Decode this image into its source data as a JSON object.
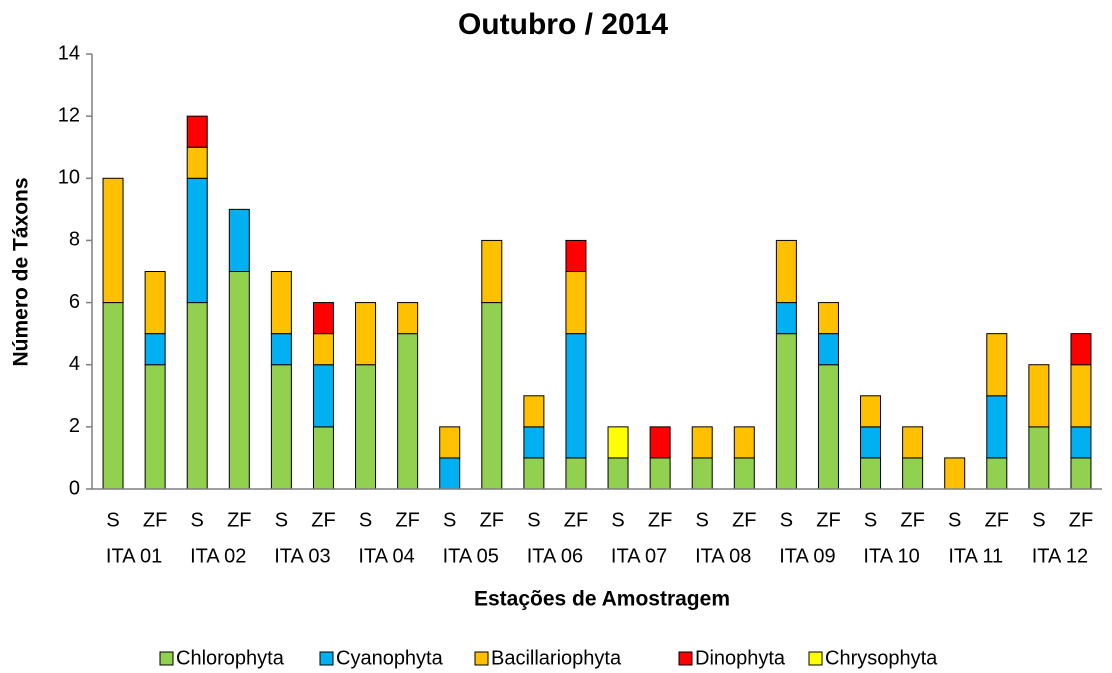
{
  "chart_data": {
    "type": "stacked_bar",
    "title": "Outubro / 2014",
    "x_label": "Estações de Amostragem",
    "y_label": "Número de Táxons",
    "categories": [
      "S",
      "ZF",
      "S",
      "ZF",
      "S",
      "ZF",
      "S",
      "ZF",
      "S",
      "ZF",
      "S",
      "ZF",
      "S",
      "ZF",
      "S",
      "ZF",
      "S",
      "ZF",
      "S",
      "ZF",
      "S",
      "ZF",
      "S",
      "ZF"
    ],
    "groups": [
      "ITA 01",
      "ITA 02",
      "ITA 03",
      "ITA 04",
      "ITA 05",
      "ITA 06",
      "ITA 07",
      "ITA 08",
      "ITA 09",
      "ITA 10",
      "ITA 11",
      "ITA 12"
    ],
    "series": [
      {
        "name": "Chlorophyta",
        "color": "#92d050",
        "values": [
          6,
          4,
          6,
          7,
          4,
          2,
          4,
          5,
          0,
          6,
          1,
          1,
          1,
          1,
          1,
          1,
          5,
          4,
          1,
          1,
          0,
          1,
          2,
          1
        ]
      },
      {
        "name": "Cyanophyta",
        "color": "#00b0f0",
        "values": [
          0,
          1,
          4,
          2,
          1,
          2,
          0,
          0,
          1,
          0,
          1,
          4,
          0,
          0,
          0,
          0,
          1,
          1,
          1,
          0,
          0,
          2,
          0,
          1
        ]
      },
      {
        "name": "Bacillariophyta",
        "color": "#ffc000",
        "values": [
          4,
          2,
          1,
          0,
          2,
          1,
          2,
          1,
          1,
          2,
          1,
          2,
          0,
          0,
          1,
          1,
          2,
          1,
          1,
          1,
          1,
          2,
          2,
          2
        ]
      },
      {
        "name": "Dinophyta",
        "color": "#ff0000",
        "values": [
          0,
          0,
          1,
          0,
          0,
          1,
          0,
          0,
          0,
          0,
          0,
          1,
          0,
          1,
          0,
          0,
          0,
          0,
          0,
          0,
          0,
          0,
          0,
          1
        ]
      },
      {
        "name": "Chrysophyta",
        "color": "#ffff00",
        "values": [
          0,
          0,
          0,
          0,
          0,
          0,
          0,
          0,
          0,
          0,
          0,
          0,
          1,
          0,
          0,
          0,
          0,
          0,
          0,
          0,
          0,
          0,
          0,
          0
        ]
      }
    ],
    "ylim": [
      0,
      14
    ],
    "yticks": [
      0,
      2,
      4,
      6,
      8,
      10,
      12,
      14
    ],
    "legend": "bottom"
  }
}
